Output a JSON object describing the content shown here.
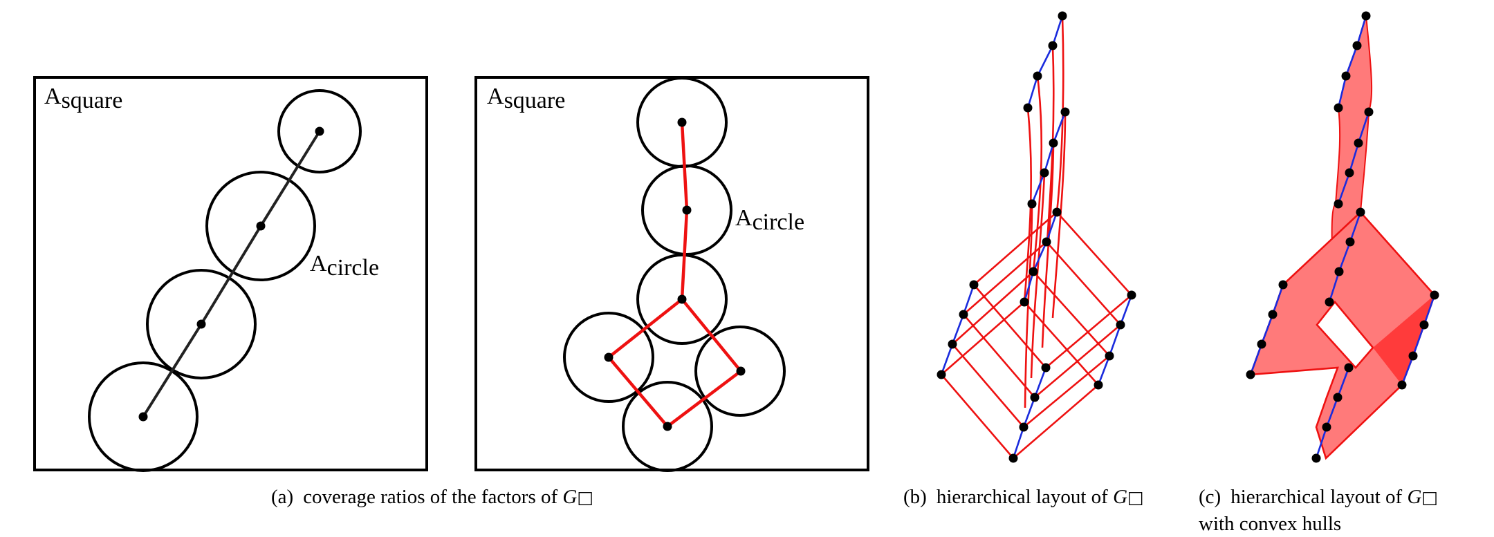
{
  "panel_a": {
    "left": {
      "square_label": "A",
      "square_label_sub": "square",
      "circle_label": "A",
      "circle_label_sub": "circle"
    },
    "right": {
      "square_label": "A",
      "square_label_sub": "square",
      "circle_label": "A",
      "circle_label_sub": "circle"
    },
    "caption": {
      "tag": "(a)",
      "text": "coverage ratios of the factors of ",
      "math_symbol": "G",
      "math_subscript": "□"
    }
  },
  "panel_b": {
    "caption": {
      "tag": "(b)",
      "text": "hierarchical layout of ",
      "math_symbol": "G",
      "math_subscript": "□"
    }
  },
  "panel_c": {
    "caption": {
      "tag": "(c)",
      "text": "hierarchical layout of ",
      "math_symbol": "G",
      "math_subscript": "□",
      "line2": "with convex hulls"
    }
  },
  "colors": {
    "edge_red": "#ee1111",
    "edge_blue": "#1a2bdd",
    "hull_fill": "#ff7a7a",
    "node": "#000000",
    "outline": "#000000"
  }
}
